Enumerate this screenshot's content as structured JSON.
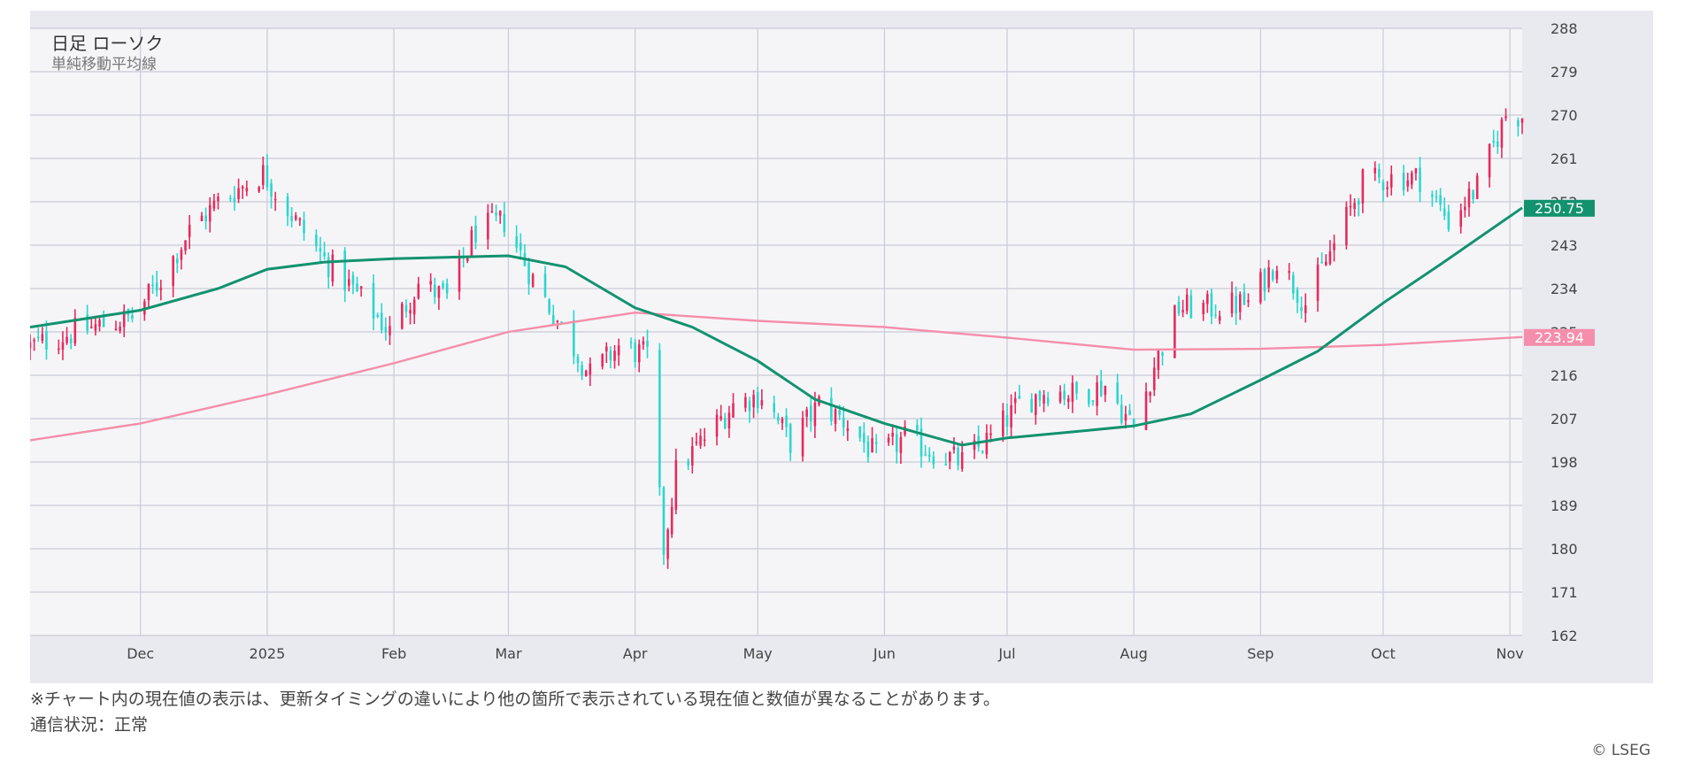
{
  "legend": {
    "title": "日足 ローソク",
    "subtitle": "単純移動平均線"
  },
  "footnote": {
    "line1": "※チャート内の現在値の表示は、更新タイミングの違いにより他の箇所で表示されている現在値と数値が異なることがあります。",
    "line2": "通信状況：正常"
  },
  "copyright": "© LSEG",
  "colors": {
    "up": "#e8295c",
    "down": "#2dd6cf",
    "ma_short": "#12926e",
    "ma_long": "#f58eaa",
    "grid": "#c9cbd6",
    "plot_bg": "#f5f5f8",
    "axis_bg": "#e9eaf0"
  },
  "chart_data": {
    "type": "candlestick",
    "y_ticks": [
      288,
      279,
      270,
      261,
      252,
      243,
      234,
      225,
      216,
      207,
      198,
      189,
      180,
      171,
      162
    ],
    "ylim": [
      162,
      288
    ],
    "month_labels": [
      {
        "label": "Dec",
        "date": "2024-12-01"
      },
      {
        "label": "2025",
        "date": "2025-01-01"
      },
      {
        "label": "Feb",
        "date": "2025-02-01"
      },
      {
        "label": "Mar",
        "date": "2025-03-01"
      },
      {
        "label": "Apr",
        "date": "2025-04-01"
      },
      {
        "label": "May",
        "date": "2025-05-01"
      },
      {
        "label": "Jun",
        "date": "2025-06-01"
      },
      {
        "label": "Jul",
        "date": "2025-07-01"
      },
      {
        "label": "Aug",
        "date": "2025-08-01"
      },
      {
        "label": "Sep",
        "date": "2025-09-01"
      },
      {
        "label": "Oct",
        "date": "2025-10-01"
      },
      {
        "label": "Nov",
        "date": "2025-11-01"
      }
    ],
    "xlim": [
      "2024-11-04",
      "2025-11-04"
    ],
    "close_path": [
      [
        "2024-11-04",
        222
      ],
      [
        "2024-11-15",
        225
      ],
      [
        "2024-11-29",
        228
      ],
      [
        "2024-12-06",
        236
      ],
      [
        "2024-12-13",
        246
      ],
      [
        "2024-12-20",
        252
      ],
      [
        "2024-12-31",
        258
      ],
      [
        "2025-01-08",
        248
      ],
      [
        "2025-01-15",
        240
      ],
      [
        "2025-01-24",
        232
      ],
      [
        "2025-01-31",
        225
      ],
      [
        "2025-02-07",
        235
      ],
      [
        "2025-02-14",
        232
      ],
      [
        "2025-02-21",
        246
      ],
      [
        "2025-02-28",
        248
      ],
      [
        "2025-03-07",
        236
      ],
      [
        "2025-03-14",
        226
      ],
      [
        "2025-03-21",
        216
      ],
      [
        "2025-03-28",
        222
      ],
      [
        "2025-04-04",
        220
      ],
      [
        "2025-04-08",
        180
      ],
      [
        "2025-04-11",
        196
      ],
      [
        "2025-04-18",
        203
      ],
      [
        "2025-04-25",
        210
      ],
      [
        "2025-05-02",
        212
      ],
      [
        "2025-05-09",
        202
      ],
      [
        "2025-05-16",
        210
      ],
      [
        "2025-05-23",
        206
      ],
      [
        "2025-05-30",
        199
      ],
      [
        "2025-06-06",
        203
      ],
      [
        "2025-06-13",
        200
      ],
      [
        "2025-06-20",
        198
      ],
      [
        "2025-06-27",
        203
      ],
      [
        "2025-07-04",
        210
      ],
      [
        "2025-07-11",
        213
      ],
      [
        "2025-07-18",
        212
      ],
      [
        "2025-07-25",
        214
      ],
      [
        "2025-08-01",
        205
      ],
      [
        "2025-08-06",
        218
      ],
      [
        "2025-08-12",
        230
      ],
      [
        "2025-08-20",
        230
      ],
      [
        "2025-08-29",
        231
      ],
      [
        "2025-09-05",
        240
      ],
      [
        "2025-09-12",
        231
      ],
      [
        "2025-09-19",
        243
      ],
      [
        "2025-09-26",
        256
      ],
      [
        "2025-10-03",
        257
      ],
      [
        "2025-10-10",
        257
      ],
      [
        "2025-10-17",
        248
      ],
      [
        "2025-10-24",
        255
      ],
      [
        "2025-10-31",
        270
      ],
      [
        "2025-11-04",
        270
      ]
    ],
    "sma_short": {
      "last_value": 250.75,
      "points": [
        [
          "2024-11-04",
          226
        ],
        [
          "2024-12-01",
          229.5
        ],
        [
          "2024-12-20",
          234
        ],
        [
          "2025-01-01",
          238
        ],
        [
          "2025-01-15",
          239.5
        ],
        [
          "2025-02-01",
          240.2
        ],
        [
          "2025-03-01",
          240.8
        ],
        [
          "2025-03-15",
          238.5
        ],
        [
          "2025-04-01",
          230
        ],
        [
          "2025-04-15",
          226
        ],
        [
          "2025-05-01",
          219
        ],
        [
          "2025-05-15",
          211
        ],
        [
          "2025-06-01",
          206
        ],
        [
          "2025-06-20",
          201.5
        ],
        [
          "2025-07-01",
          203
        ],
        [
          "2025-07-20",
          204.5
        ],
        [
          "2025-08-01",
          205.5
        ],
        [
          "2025-08-15",
          208
        ],
        [
          "2025-09-01",
          215
        ],
        [
          "2025-09-15",
          221
        ],
        [
          "2025-10-01",
          231
        ],
        [
          "2025-10-15",
          239
        ],
        [
          "2025-11-04",
          250.75
        ]
      ]
    },
    "sma_long": {
      "last_value": 223.94,
      "points": [
        [
          "2024-11-04",
          202.5
        ],
        [
          "2024-12-01",
          206
        ],
        [
          "2025-01-01",
          212
        ],
        [
          "2025-02-01",
          218.5
        ],
        [
          "2025-03-01",
          225
        ],
        [
          "2025-04-01",
          229
        ],
        [
          "2025-05-01",
          227.3
        ],
        [
          "2025-06-01",
          226
        ],
        [
          "2025-07-01",
          223.8
        ],
        [
          "2025-08-01",
          221.3
        ],
        [
          "2025-09-01",
          221.5
        ],
        [
          "2025-10-01",
          222.3
        ],
        [
          "2025-11-04",
          223.94
        ]
      ]
    }
  }
}
